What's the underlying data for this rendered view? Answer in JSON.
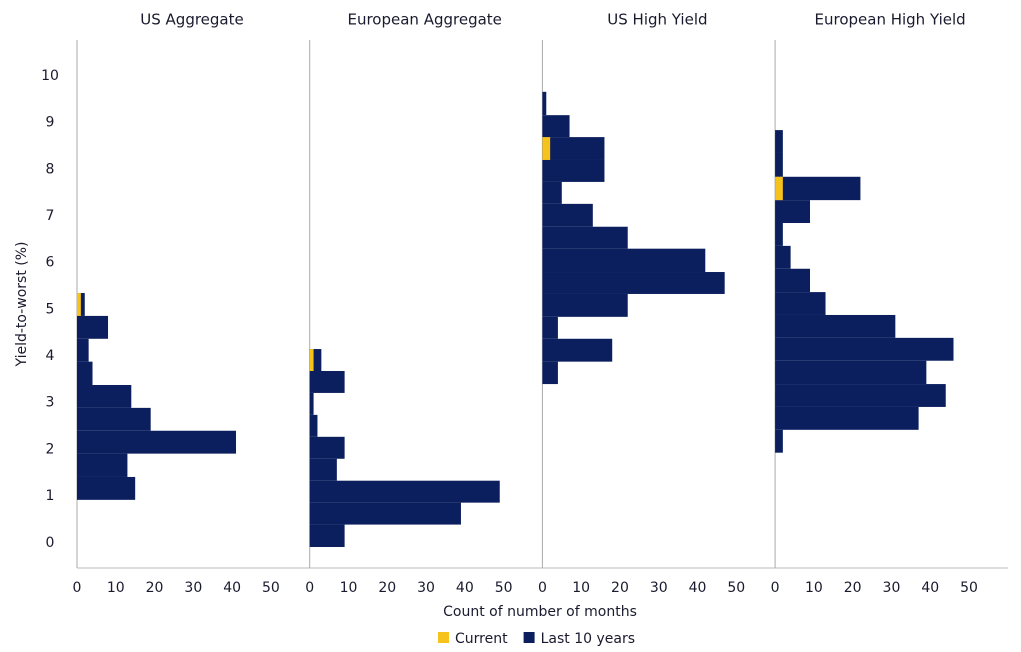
{
  "chart_data": {
    "type": "histogram",
    "orientation": "horizontal",
    "ylabel": "Yield-to-worst (%)",
    "xlabel": "Count of number of months",
    "ylim": [
      -0.54,
      10.77
    ],
    "yticks": [
      0,
      1,
      2,
      3,
      4,
      5,
      6,
      7,
      8,
      9,
      10
    ],
    "xlim": [
      0,
      60
    ],
    "xticks": [
      0,
      10,
      20,
      30,
      40,
      50
    ],
    "grid": false,
    "legend": "bottom",
    "series": [
      {
        "name": "Current",
        "color": "#f6c21c"
      },
      {
        "name": "Last 10 years",
        "color": "#0b1f5e"
      }
    ],
    "panels": [
      {
        "title": "US Aggregate",
        "bins": [
          0.92,
          1.41,
          1.91,
          2.4,
          2.89,
          3.38,
          3.88,
          4.37,
          4.86,
          5.35
        ],
        "values": [
          [
            0,
            0,
            0,
            0,
            0,
            0,
            0,
            0,
            1
          ],
          [
            15,
            13,
            41,
            19,
            14,
            4,
            3,
            8,
            2
          ]
        ]
      },
      {
        "title": "European Aggregate",
        "bins": [
          -0.09,
          0.39,
          0.86,
          1.33,
          1.8,
          2.27,
          2.74,
          3.21,
          3.68,
          4.15
        ],
        "values": [
          [
            0,
            0,
            0,
            0,
            0,
            0,
            0,
            0,
            1
          ],
          [
            9,
            39,
            49,
            7,
            9,
            2,
            1,
            9,
            3
          ]
        ]
      },
      {
        "title": "US High Yield",
        "bins": [
          3.4,
          3.88,
          4.37,
          4.84,
          5.33,
          5.8,
          6.3,
          6.77,
          7.26,
          7.73,
          8.2,
          8.69,
          9.16,
          9.66
        ],
        "values": [
          [
            0,
            0,
            0,
            0,
            0,
            0,
            0,
            0,
            0,
            0,
            2,
            0,
            0
          ],
          [
            4,
            18,
            4,
            22,
            47,
            42,
            22,
            13,
            5,
            16,
            16,
            7,
            1
          ]
        ]
      },
      {
        "title": "European High Yield",
        "bins": [
          1.93,
          2.42,
          2.91,
          3.4,
          3.9,
          4.39,
          4.88,
          5.37,
          5.87,
          6.36,
          6.85,
          7.34,
          7.84,
          8.35,
          8.84
        ],
        "values": [
          [
            0,
            0,
            0,
            0,
            0,
            0,
            0,
            0,
            0,
            0,
            0,
            2,
            0,
            0
          ],
          [
            2,
            37,
            44,
            39,
            46,
            31,
            13,
            9,
            4,
            2,
            9,
            22,
            2,
            2
          ]
        ]
      }
    ]
  }
}
